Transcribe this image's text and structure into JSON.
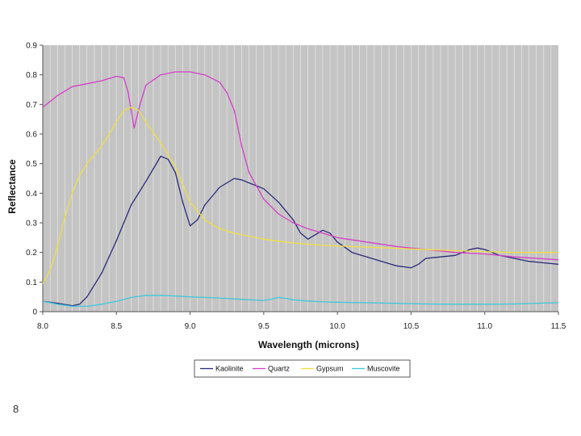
{
  "page": {
    "number": "8"
  },
  "chart_data": {
    "type": "line",
    "title": "",
    "xlabel": "Wavelength (microns)",
    "ylabel": "Reflectance",
    "xlim": [
      8.0,
      11.5
    ],
    "ylim": [
      0,
      0.9
    ],
    "x_ticks": [
      8.0,
      8.5,
      9.0,
      9.5,
      10.0,
      10.5,
      11.0,
      11.5
    ],
    "x_tick_labels": [
      "8.0",
      "8.5",
      "9.0",
      "9.5",
      "10.0",
      "10.5",
      "11.0",
      "11.5"
    ],
    "y_ticks": [
      0,
      0.1,
      0.2,
      0.3,
      0.4,
      0.5,
      0.6,
      0.7,
      0.8,
      0.9
    ],
    "y_tick_labels": [
      "0",
      "0.1",
      "0.2",
      "0.3",
      "0.4",
      "0.5",
      "0.6",
      "0.7",
      "0.8",
      "0.9"
    ],
    "grid": "vertical",
    "legend_position": "bottom",
    "background": "#c4c4c4",
    "series": [
      {
        "name": "Kaolinite",
        "color": "#2a2a7a",
        "points": [
          [
            8.0,
            0.035
          ],
          [
            8.1,
            0.028
          ],
          [
            8.2,
            0.02
          ],
          [
            8.25,
            0.025
          ],
          [
            8.3,
            0.05
          ],
          [
            8.4,
            0.13
          ],
          [
            8.5,
            0.24
          ],
          [
            8.55,
            0.3
          ],
          [
            8.6,
            0.36
          ],
          [
            8.7,
            0.44
          ],
          [
            8.8,
            0.525
          ],
          [
            8.85,
            0.515
          ],
          [
            8.9,
            0.47
          ],
          [
            8.95,
            0.37
          ],
          [
            9.0,
            0.29
          ],
          [
            9.05,
            0.31
          ],
          [
            9.1,
            0.36
          ],
          [
            9.2,
            0.42
          ],
          [
            9.3,
            0.45
          ],
          [
            9.35,
            0.445
          ],
          [
            9.4,
            0.435
          ],
          [
            9.5,
            0.415
          ],
          [
            9.6,
            0.37
          ],
          [
            9.7,
            0.31
          ],
          [
            9.75,
            0.265
          ],
          [
            9.8,
            0.245
          ],
          [
            9.85,
            0.26
          ],
          [
            9.9,
            0.275
          ],
          [
            9.95,
            0.265
          ],
          [
            10.0,
            0.235
          ],
          [
            10.1,
            0.2
          ],
          [
            10.2,
            0.185
          ],
          [
            10.3,
            0.17
          ],
          [
            10.4,
            0.155
          ],
          [
            10.5,
            0.148
          ],
          [
            10.55,
            0.16
          ],
          [
            10.6,
            0.18
          ],
          [
            10.7,
            0.185
          ],
          [
            10.8,
            0.19
          ],
          [
            10.9,
            0.21
          ],
          [
            10.95,
            0.215
          ],
          [
            11.0,
            0.21
          ],
          [
            11.1,
            0.19
          ],
          [
            11.2,
            0.18
          ],
          [
            11.3,
            0.17
          ],
          [
            11.4,
            0.165
          ],
          [
            11.5,
            0.16
          ]
        ]
      },
      {
        "name": "Quartz",
        "color": "#d43fc8",
        "points": [
          [
            8.0,
            0.69
          ],
          [
            8.05,
            0.71
          ],
          [
            8.1,
            0.73
          ],
          [
            8.2,
            0.76
          ],
          [
            8.3,
            0.77
          ],
          [
            8.4,
            0.78
          ],
          [
            8.5,
            0.795
          ],
          [
            8.55,
            0.79
          ],
          [
            8.58,
            0.74
          ],
          [
            8.62,
            0.62
          ],
          [
            8.66,
            0.7
          ],
          [
            8.7,
            0.765
          ],
          [
            8.8,
            0.8
          ],
          [
            8.9,
            0.81
          ],
          [
            9.0,
            0.81
          ],
          [
            9.1,
            0.8
          ],
          [
            9.2,
            0.775
          ],
          [
            9.25,
            0.74
          ],
          [
            9.3,
            0.68
          ],
          [
            9.35,
            0.56
          ],
          [
            9.4,
            0.47
          ],
          [
            9.5,
            0.38
          ],
          [
            9.6,
            0.33
          ],
          [
            9.7,
            0.3
          ],
          [
            9.8,
            0.28
          ],
          [
            9.9,
            0.265
          ],
          [
            10.0,
            0.25
          ],
          [
            10.2,
            0.235
          ],
          [
            10.4,
            0.22
          ],
          [
            10.6,
            0.21
          ],
          [
            10.8,
            0.2
          ],
          [
            11.0,
            0.195
          ],
          [
            11.2,
            0.185
          ],
          [
            11.5,
            0.175
          ]
        ]
      },
      {
        "name": "Gypsum",
        "color": "#f0e040",
        "points": [
          [
            8.0,
            0.095
          ],
          [
            8.05,
            0.14
          ],
          [
            8.1,
            0.22
          ],
          [
            8.15,
            0.32
          ],
          [
            8.2,
            0.4
          ],
          [
            8.25,
            0.46
          ],
          [
            8.3,
            0.5
          ],
          [
            8.35,
            0.53
          ],
          [
            8.4,
            0.56
          ],
          [
            8.45,
            0.6
          ],
          [
            8.5,
            0.64
          ],
          [
            8.55,
            0.68
          ],
          [
            8.6,
            0.69
          ],
          [
            8.65,
            0.68
          ],
          [
            8.7,
            0.64
          ],
          [
            8.8,
            0.57
          ],
          [
            8.9,
            0.49
          ],
          [
            8.95,
            0.43
          ],
          [
            9.0,
            0.37
          ],
          [
            9.05,
            0.34
          ],
          [
            9.1,
            0.31
          ],
          [
            9.2,
            0.28
          ],
          [
            9.3,
            0.265
          ],
          [
            9.4,
            0.255
          ],
          [
            9.5,
            0.245
          ],
          [
            9.6,
            0.238
          ],
          [
            9.7,
            0.232
          ],
          [
            9.8,
            0.228
          ],
          [
            9.9,
            0.224
          ],
          [
            10.0,
            0.222
          ],
          [
            10.2,
            0.218
          ],
          [
            10.5,
            0.212
          ],
          [
            10.8,
            0.206
          ],
          [
            11.0,
            0.203
          ],
          [
            11.2,
            0.2
          ],
          [
            11.5,
            0.2
          ]
        ]
      },
      {
        "name": "Muscovite",
        "color": "#40c8d8",
        "points": [
          [
            8.0,
            0.035
          ],
          [
            8.1,
            0.025
          ],
          [
            8.2,
            0.018
          ],
          [
            8.3,
            0.018
          ],
          [
            8.4,
            0.025
          ],
          [
            8.5,
            0.035
          ],
          [
            8.6,
            0.048
          ],
          [
            8.7,
            0.055
          ],
          [
            8.8,
            0.055
          ],
          [
            8.9,
            0.053
          ],
          [
            9.0,
            0.05
          ],
          [
            9.1,
            0.048
          ],
          [
            9.2,
            0.046
          ],
          [
            9.3,
            0.043
          ],
          [
            9.4,
            0.04
          ],
          [
            9.5,
            0.038
          ],
          [
            9.55,
            0.042
          ],
          [
            9.6,
            0.048
          ],
          [
            9.65,
            0.045
          ],
          [
            9.7,
            0.04
          ],
          [
            9.8,
            0.036
          ],
          [
            9.9,
            0.033
          ],
          [
            10.0,
            0.032
          ],
          [
            10.2,
            0.03
          ],
          [
            10.4,
            0.028
          ],
          [
            10.6,
            0.026
          ],
          [
            10.8,
            0.025
          ],
          [
            11.0,
            0.025
          ],
          [
            11.2,
            0.026
          ],
          [
            11.4,
            0.029
          ],
          [
            11.5,
            0.03
          ]
        ]
      }
    ]
  }
}
